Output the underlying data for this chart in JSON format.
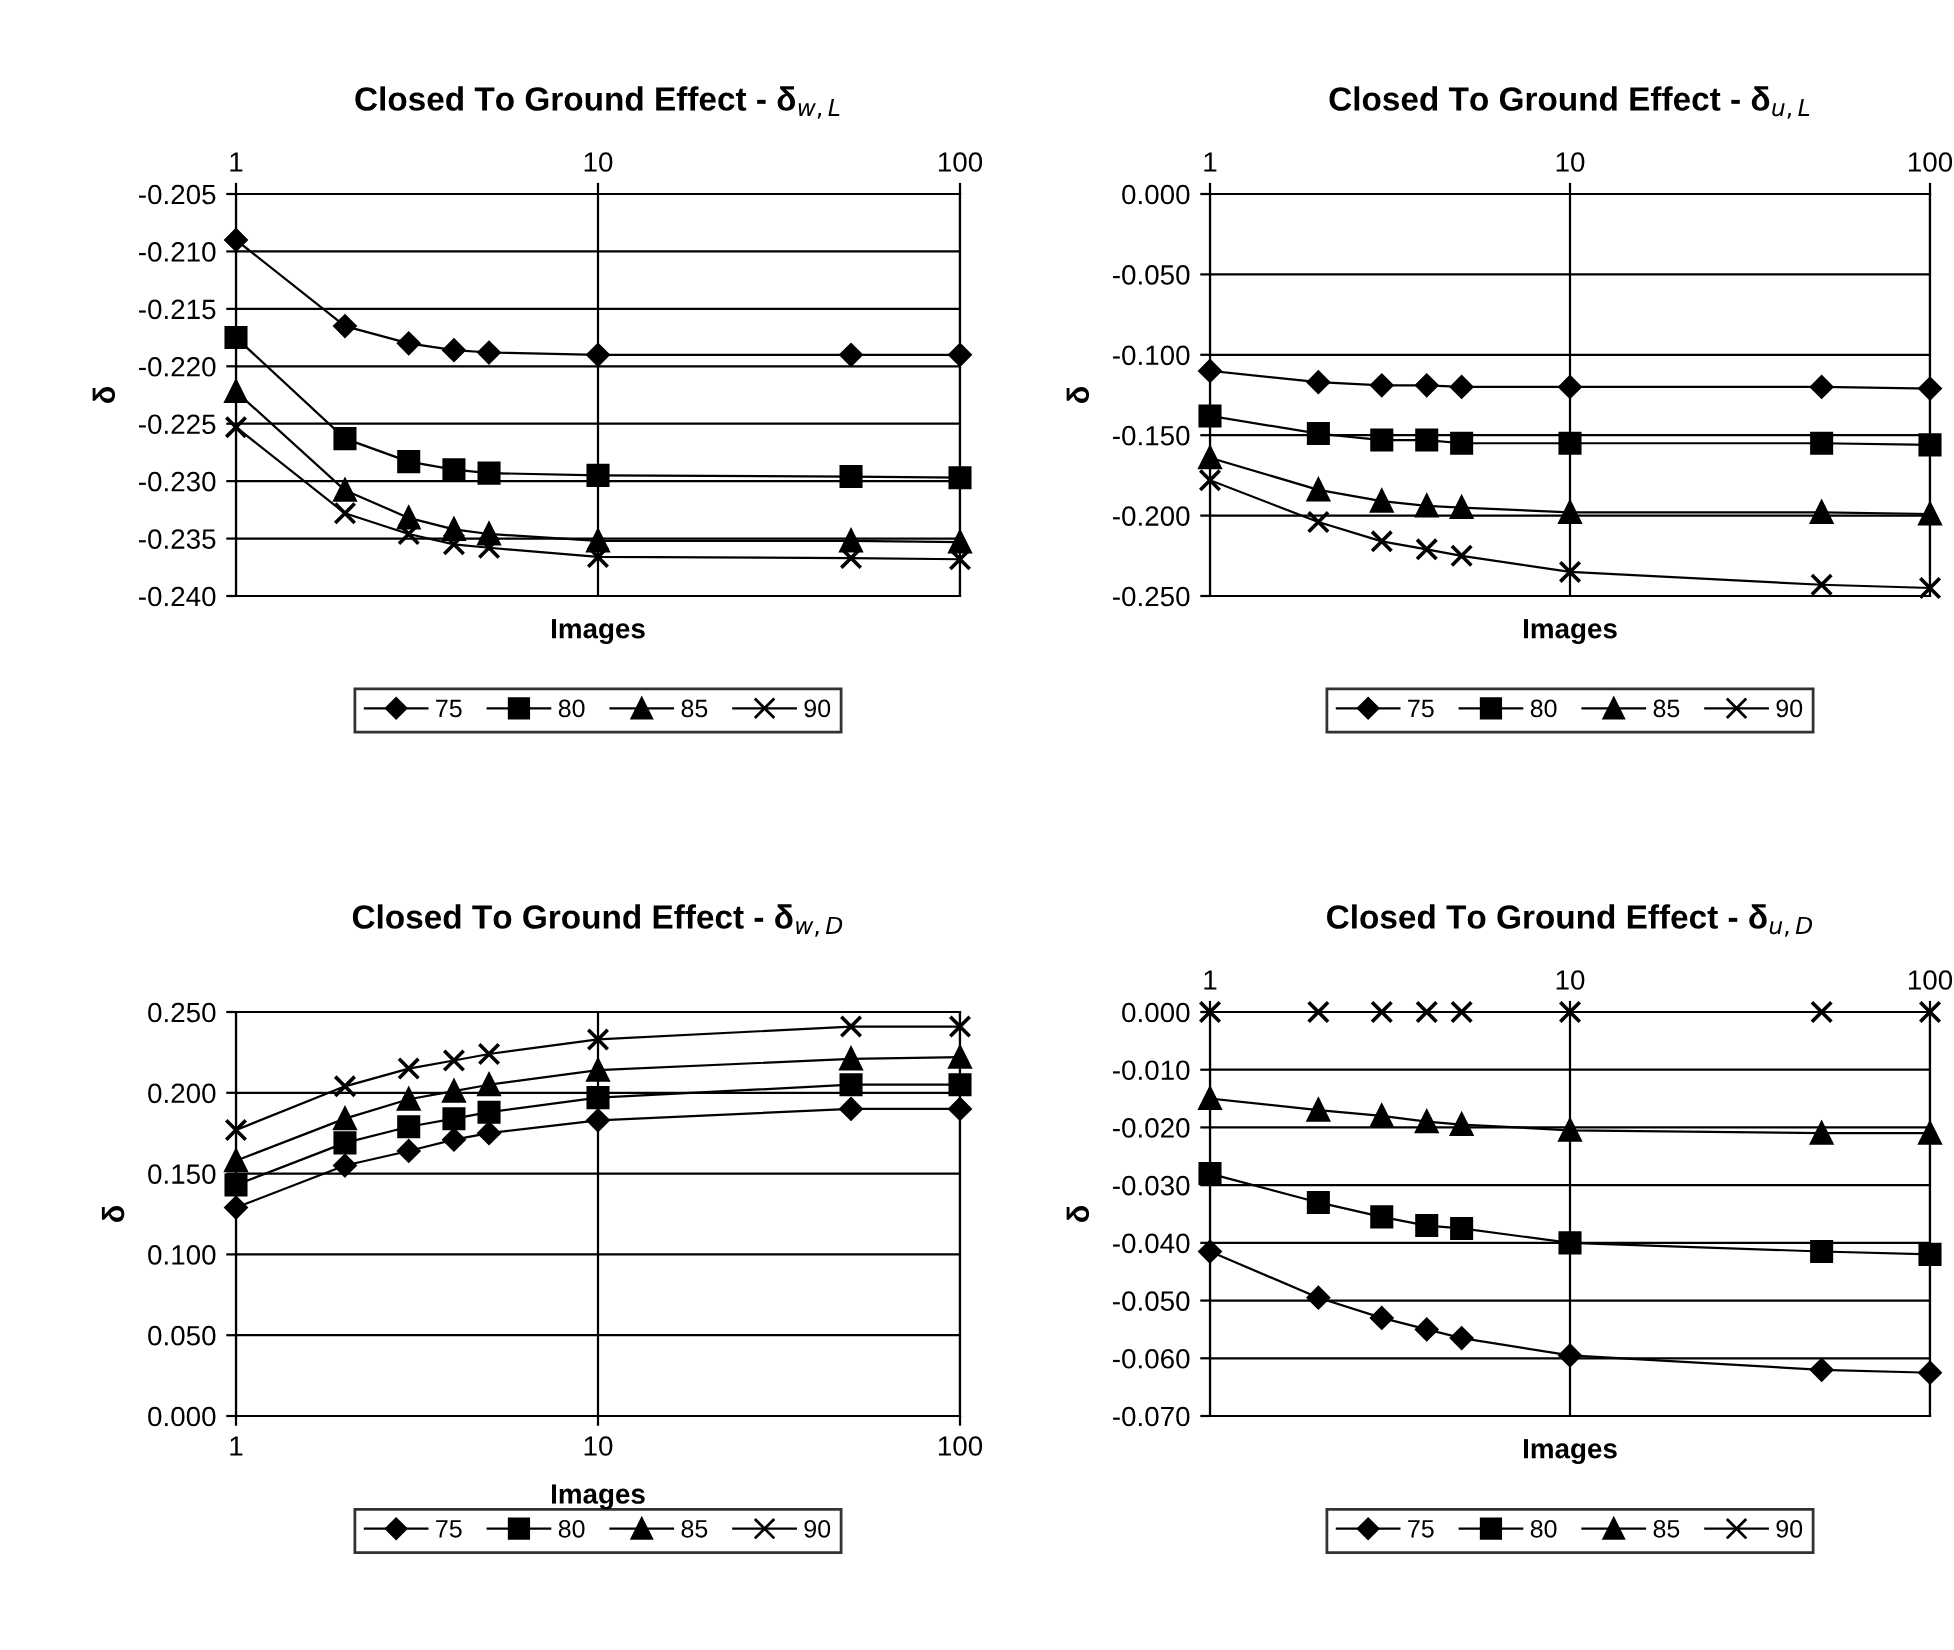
{
  "chart_data": [
    {
      "type": "line",
      "title": "Closed To Ground Effect - δ$_{w,L}$",
      "xlabel": "Images",
      "ylabel": "δ",
      "log": "x",
      "grid": true,
      "legend": "bottom",
      "x": [
        1,
        2,
        3,
        4,
        5,
        10,
        50,
        100
      ],
      "xlim": [
        1,
        100
      ],
      "xticks": [
        1,
        10,
        100
      ],
      "ylim": [
        -0.24,
        -0.205
      ],
      "yticks": [
        {
          "value": -0.24,
          "label": "-0.240"
        },
        {
          "value": -0.235,
          "label": "-0.235"
        },
        {
          "value": -0.23,
          "label": "-0.230"
        },
        {
          "value": -0.225,
          "label": "-0.225"
        },
        {
          "value": -0.22,
          "label": "-0.220"
        },
        {
          "value": -0.215,
          "label": "-0.215"
        },
        {
          "value": -0.21,
          "label": "-0.210"
        },
        {
          "value": -0.205,
          "label": "-0.205"
        }
      ],
      "series": [
        {
          "name": "75",
          "color": "#000000",
          "marker": "diamond",
          "values": [
            -0.209,
            -0.2165,
            -0.218,
            -0.2186,
            -0.2188,
            -0.219,
            -0.219,
            -0.219
          ]
        },
        {
          "name": "80",
          "color": "#000000",
          "marker": "square",
          "values": [
            -0.2175,
            -0.2263,
            -0.2283,
            -0.229,
            -0.2293,
            -0.2295,
            -0.2296,
            -0.2297
          ]
        },
        {
          "name": "85",
          "color": "#000000",
          "marker": "triangle",
          "values": [
            -0.2222,
            -0.2308,
            -0.2332,
            -0.2342,
            -0.2346,
            -0.2352,
            -0.2352,
            -0.2353
          ]
        },
        {
          "name": "90",
          "color": "#000000",
          "marker": "cross",
          "values": [
            -0.2253,
            -0.2328,
            -0.2346,
            -0.2355,
            -0.2358,
            -0.2366,
            -0.2367,
            -0.2368
          ]
        }
      ]
    },
    {
      "type": "line",
      "title": "Closed To Ground Effect - δ$_{u,L}$",
      "xlabel": "Images",
      "ylabel": "δ",
      "log": "x",
      "grid": true,
      "legend": "bottom",
      "x": [
        1,
        2,
        3,
        4,
        5,
        10,
        50,
        100
      ],
      "xlim": [
        1,
        100
      ],
      "xticks": [
        1,
        10,
        100
      ],
      "ylim": [
        -0.25,
        0.0
      ],
      "yticks": [
        {
          "value": -0.25,
          "label": "-0.250"
        },
        {
          "value": -0.2,
          "label": "-0.200"
        },
        {
          "value": -0.15,
          "label": "-0.150"
        },
        {
          "value": -0.1,
          "label": "-0.100"
        },
        {
          "value": -0.05,
          "label": "-0.050"
        },
        {
          "value": 0.0,
          "label": "0.000"
        }
      ],
      "series": [
        {
          "name": "75",
          "color": "#000000",
          "marker": "diamond",
          "values": [
            -0.11,
            -0.117,
            -0.119,
            -0.119,
            -0.12,
            -0.12,
            -0.12,
            -0.121
          ]
        },
        {
          "name": "80",
          "color": "#000000",
          "marker": "square",
          "values": [
            -0.138,
            -0.149,
            -0.153,
            -0.153,
            -0.155,
            -0.155,
            -0.155,
            -0.156
          ]
        },
        {
          "name": "85",
          "color": "#000000",
          "marker": "triangle",
          "values": [
            -0.164,
            -0.184,
            -0.191,
            -0.194,
            -0.195,
            -0.198,
            -0.198,
            -0.199
          ]
        },
        {
          "name": "90",
          "color": "#000000",
          "marker": "cross",
          "values": [
            -0.178,
            -0.204,
            -0.216,
            -0.221,
            -0.225,
            -0.235,
            -0.243,
            -0.245
          ]
        }
      ]
    },
    {
      "type": "line",
      "title": "Closed To Ground Effect - δ$_{w,D}$",
      "xlabel": "Images",
      "ylabel": "δ",
      "log": "x",
      "grid": true,
      "legend": "bottom",
      "x": [
        1,
        2,
        3,
        4,
        5,
        10,
        50,
        100
      ],
      "xlim": [
        1,
        100
      ],
      "xticks": [
        1,
        10,
        100
      ],
      "ylim": [
        0.0,
        0.25
      ],
      "yticks": [
        {
          "value": 0.0,
          "label": "0.000"
        },
        {
          "value": 0.05,
          "label": "0.050"
        },
        {
          "value": 0.1,
          "label": "0.100"
        },
        {
          "value": 0.15,
          "label": "0.150"
        },
        {
          "value": 0.2,
          "label": "0.200"
        },
        {
          "value": 0.25,
          "label": "0.250"
        }
      ],
      "series": [
        {
          "name": "75",
          "color": "#000000",
          "marker": "diamond",
          "values": [
            0.129,
            0.155,
            0.164,
            0.171,
            0.175,
            0.183,
            0.19,
            0.19
          ]
        },
        {
          "name": "80",
          "color": "#000000",
          "marker": "square",
          "values": [
            0.143,
            0.169,
            0.179,
            0.184,
            0.188,
            0.197,
            0.205,
            0.205
          ]
        },
        {
          "name": "85",
          "color": "#000000",
          "marker": "triangle",
          "values": [
            0.158,
            0.184,
            0.196,
            0.201,
            0.205,
            0.214,
            0.221,
            0.222
          ]
        },
        {
          "name": "90",
          "color": "#000000",
          "marker": "cross",
          "values": [
            0.177,
            0.204,
            0.215,
            0.22,
            0.224,
            0.233,
            0.241,
            0.241
          ]
        }
      ]
    },
    {
      "type": "line",
      "title": "Closed To Ground Effect - δ$_{u,D}$",
      "xlabel": "Images",
      "ylabel": "δ",
      "log": "x",
      "grid": true,
      "legend": "bottom",
      "x": [
        1,
        2,
        3,
        4,
        5,
        10,
        50,
        100
      ],
      "xlim": [
        1,
        100
      ],
      "xticks": [
        1,
        10,
        100
      ],
      "ylim": [
        -0.07,
        0.0
      ],
      "yticks": [
        {
          "value": -0.07,
          "label": "-0.070"
        },
        {
          "value": -0.06,
          "label": "-0.060"
        },
        {
          "value": -0.05,
          "label": "-0.050"
        },
        {
          "value": -0.04,
          "label": "-0.040"
        },
        {
          "value": -0.03,
          "label": "-0.030"
        },
        {
          "value": -0.02,
          "label": "-0.020"
        },
        {
          "value": -0.01,
          "label": "-0.010"
        },
        {
          "value": 0.0,
          "label": "0.000"
        }
      ],
      "series": [
        {
          "name": "75",
          "color": "#000000",
          "marker": "diamond",
          "values": [
            -0.0415,
            -0.0495,
            -0.053,
            -0.055,
            -0.0565,
            -0.0595,
            -0.062,
            -0.0625
          ]
        },
        {
          "name": "80",
          "color": "#000000",
          "marker": "square",
          "values": [
            -0.028,
            -0.033,
            -0.0355,
            -0.037,
            -0.0375,
            -0.04,
            -0.0415,
            -0.042
          ]
        },
        {
          "name": "85",
          "color": "#000000",
          "marker": "triangle",
          "values": [
            -0.015,
            -0.017,
            -0.018,
            -0.019,
            -0.0195,
            -0.0205,
            -0.021,
            -0.021
          ]
        },
        {
          "name": "90",
          "color": "#000000",
          "marker": "cross",
          "values": [
            0.0,
            0.0,
            0.0,
            0.0,
            0.0,
            0.0,
            0.0,
            0.0
          ]
        }
      ]
    }
  ]
}
